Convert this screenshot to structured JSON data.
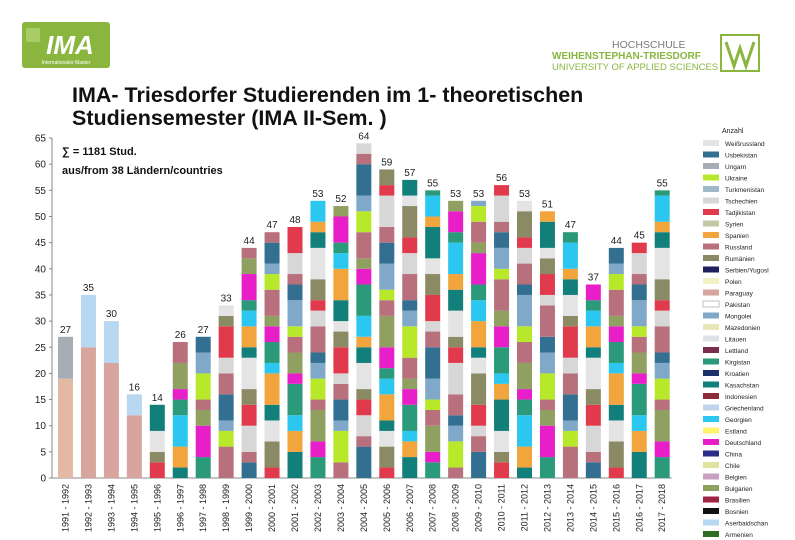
{
  "title": "IMA- Triesdorfer Studierenden im 1- theoretischen Studiensemester (IMA II-Sem. )",
  "logo_left": {
    "text": "IMA",
    "subtext": "Internationaler Master"
  },
  "logo_right": {
    "line1": "HOCHSCHULE",
    "line2": "WEIHENSTEPHAN-TRIESDORF",
    "line3": "UNIVERSITY OF APPLIED SCIENCES",
    "colors": {
      "green": "#8ab63f",
      "grey": "#7a7a7a"
    }
  },
  "chart_data": {
    "type": "bar",
    "stacked": true,
    "categories": [
      "1991 - 1992",
      "1992 - 1993",
      "1993 - 1994",
      "1994 - 1995",
      "1995 - 1996",
      "1996 - 1997",
      "1997 - 1998",
      "1998 - 1999",
      "1999 - 2000",
      "2000 - 2001",
      "2001 - 2002",
      "2002 - 2003",
      "2003 - 2004",
      "2004 - 2005",
      "2005 - 2006",
      "2006 - 2007",
      "2007 - 2008",
      "2008 - 2009",
      "2009 - 2010",
      "2010 - 2011",
      "2011 - 2012",
      "2012 - 2013",
      "2013 - 2014",
      "2014 - 2015",
      "2015 - 2016",
      "2016 - 2017",
      "2017 - 2018"
    ],
    "totals": [
      27,
      35,
      30,
      16,
      14,
      26,
      27,
      33,
      44,
      47,
      48,
      53,
      52,
      64,
      59,
      57,
      55,
      53,
      53,
      56,
      53,
      51,
      47,
      37,
      44,
      45,
      55
    ],
    "data_labels": [
      "27",
      "35",
      "30",
      "16",
      "14",
      "26",
      "27",
      "33",
      "44",
      "47",
      "48",
      "53",
      "52",
      "64",
      "59",
      "57",
      "55",
      "53",
      "53",
      "56",
      "53",
      "51",
      "47",
      "37",
      "44",
      "45",
      "55"
    ],
    "ylim": [
      0,
      65
    ],
    "yticks": [
      0,
      5,
      10,
      15,
      20,
      25,
      30,
      35,
      40,
      45,
      50,
      55,
      60,
      65
    ],
    "grid": false,
    "annotations": [
      "∑ = 1181 Stud.",
      "aus/from  38 Ländern/countries"
    ],
    "legend_title": "Anzahl",
    "legend_placement": "right",
    "legend": [
      {
        "name": "Weißrussland",
        "color": "#e4e4e4"
      },
      {
        "name": "Usbekistan",
        "color": "#336f91"
      },
      {
        "name": "Ungarn",
        "color": "#a7adb5"
      },
      {
        "name": "Ukraine",
        "color": "#b8e82a"
      },
      {
        "name": "Turkmenistan",
        "color": "#9fb8ca"
      },
      {
        "name": "Tschechien",
        "color": "#d7d7d7"
      },
      {
        "name": "Tadjikistan",
        "color": "#e23a4d"
      },
      {
        "name": "Syrien",
        "color": "#bfc9a6"
      },
      {
        "name": "Spanien",
        "color": "#f2a53c"
      },
      {
        "name": "Russland",
        "color": "#b8707d"
      },
      {
        "name": "Rumänien",
        "color": "#8a8a64"
      },
      {
        "name": "Serbien/Yugosl",
        "color": "#1f1f5f"
      },
      {
        "name": "Polen",
        "color": "#f4f2c4"
      },
      {
        "name": "Paraguay",
        "color": "#d8a59e"
      },
      {
        "name": "Pakistan",
        "color": "#ffffff"
      },
      {
        "name": "Mongolei",
        "color": "#7fa8c9"
      },
      {
        "name": "Mazedonien",
        "color": "#e9e7b8"
      },
      {
        "name": "Litauen",
        "color": "#dfe3e8"
      },
      {
        "name": "Lettland",
        "color": "#7c2d4d"
      },
      {
        "name": "Kirgistan",
        "color": "#2a9a7a"
      },
      {
        "name": "Kroatien",
        "color": "#1b2f6a"
      },
      {
        "name": "Kasachstan",
        "color": "#127f7b"
      },
      {
        "name": "Indonesien",
        "color": "#8b2c3b"
      },
      {
        "name": "Griechenland",
        "color": "#bfd4ea"
      },
      {
        "name": "Georgien",
        "color": "#2cc7f0"
      },
      {
        "name": "Estland",
        "color": "#fff36a"
      },
      {
        "name": "Deutschland",
        "color": "#e81ec8"
      },
      {
        "name": "China",
        "color": "#2b2b88"
      },
      {
        "name": "Chile",
        "color": "#e2e2a0"
      },
      {
        "name": "Belgien",
        "color": "#c99fc3"
      },
      {
        "name": "Bulgarien",
        "color": "#8fa060"
      },
      {
        "name": "Brasilien",
        "color": "#a02545"
      },
      {
        "name": "Bosnien",
        "color": "#121212"
      },
      {
        "name": "Aserbaidschan",
        "color": "#b8d7f0"
      },
      {
        "name": "Armenien",
        "color": "#2f6e22"
      }
    ]
  }
}
